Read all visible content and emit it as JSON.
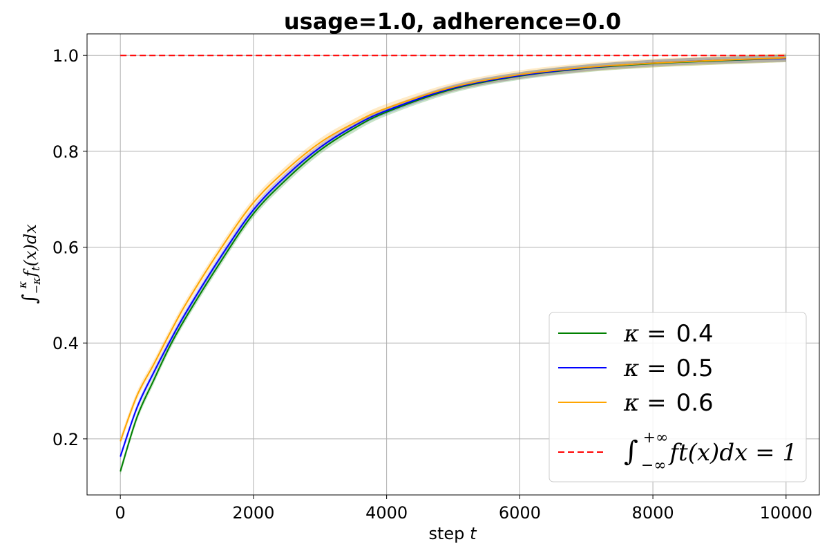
{
  "chart_data": {
    "type": "line",
    "title": "usage=1.0, adherence=0.0",
    "xlabel": "step",
    "xlabel_var": "t",
    "ylabel": "∫−κκ ft(x)dx",
    "xlim": [
      -500,
      10500
    ],
    "ylim": [
      0.083,
      1.045
    ],
    "xticks": [
      0,
      2000,
      4000,
      6000,
      8000,
      10000
    ],
    "xtick_labels": [
      "0",
      "2000",
      "4000",
      "6000",
      "8000",
      "10000"
    ],
    "yticks": [
      0.2,
      0.4,
      0.6,
      0.8,
      1.0
    ],
    "ytick_labels": [
      "0.2",
      "0.4",
      "0.6",
      "0.8",
      "1.0"
    ],
    "grid": true,
    "legend_position": "lower-right",
    "x": [
      0,
      250,
      500,
      750,
      1000,
      1500,
      2000,
      2500,
      3000,
      3500,
      4000,
      5000,
      6000,
      7000,
      8000,
      9000,
      10000
    ],
    "series": [
      {
        "name": "κ = 0.4",
        "legend_prefix": "κ =",
        "legend_value": "0.4",
        "color": "#008000",
        "band": 0.008,
        "values": [
          0.132,
          0.245,
          0.322,
          0.395,
          0.457,
          0.568,
          0.67,
          0.742,
          0.802,
          0.847,
          0.882,
          0.93,
          0.957,
          0.973,
          0.983,
          0.989,
          0.994
        ]
      },
      {
        "name": "κ = 0.5",
        "legend_prefix": "κ =",
        "legend_value": "0.5",
        "color": "#0000ff",
        "band": 0.007,
        "values": [
          0.163,
          0.265,
          0.338,
          0.405,
          0.467,
          0.578,
          0.678,
          0.75,
          0.808,
          0.852,
          0.885,
          0.932,
          0.958,
          0.974,
          0.984,
          0.99,
          0.994
        ]
      },
      {
        "name": "κ = 0.6",
        "legend_prefix": "κ =",
        "legend_value": "0.6",
        "color": "#ffa500",
        "band": 0.009,
        "values": [
          0.195,
          0.29,
          0.355,
          0.422,
          0.485,
          0.595,
          0.693,
          0.762,
          0.818,
          0.858,
          0.89,
          0.934,
          0.96,
          0.975,
          0.984,
          0.99,
          0.995
        ]
      }
    ],
    "reference_line": {
      "name": "∫−∞+∞ ft(x)dx = 1",
      "value": 1.0,
      "color": "#ff0000",
      "style": "dashed"
    },
    "legend_ref_label": {
      "integral": "∫",
      "lower": "−∞",
      "upper": "+∞",
      "body": "ft(x)dx = 1"
    }
  }
}
